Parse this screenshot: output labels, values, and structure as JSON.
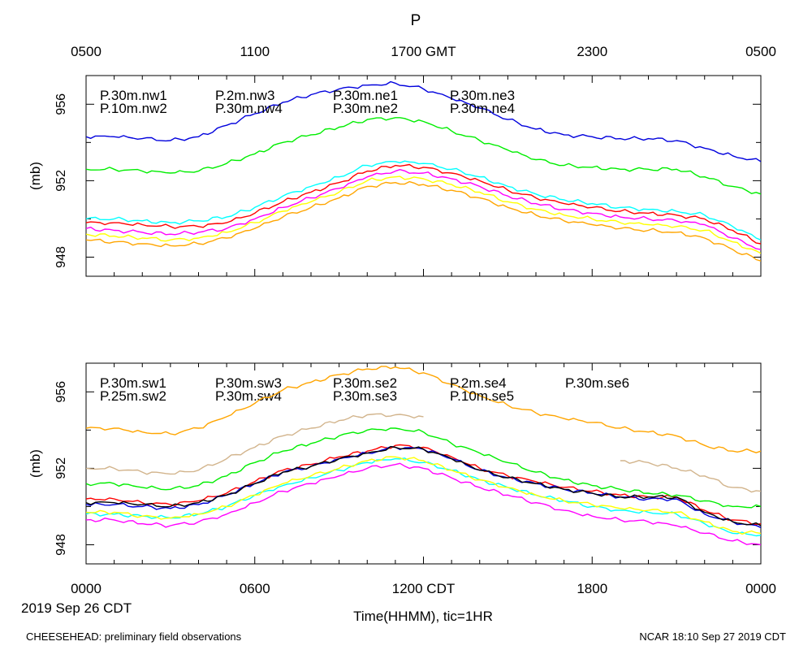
{
  "chart_data": {
    "type": "line",
    "title": "P",
    "ylabel": "(mb)",
    "ylim": [
      947,
      957.5
    ],
    "yticks": [
      "948",
      "952",
      "956"
    ],
    "top_axis": {
      "tick_labels": [
        "0500",
        "1100",
        "1700 GMT",
        "2300",
        "0500"
      ]
    },
    "bottom_axis": {
      "tick_labels": [
        "0000",
        "0600",
        "1200 CDT",
        "1800",
        "0000"
      ]
    },
    "xlabel": "Time(HHMM), tic=1HR",
    "date_label": "2019 Sep 26 CDT",
    "footer_left": "CHEESEHEAD: preliminary field observations",
    "footer_right": "NCAR 18:10 Sep 27 2019 CDT",
    "x_hours": [
      0,
      1,
      2,
      3,
      4,
      5,
      6,
      7,
      8,
      9,
      10,
      11,
      12,
      13,
      14,
      15,
      16,
      17,
      18,
      19,
      20,
      21,
      22,
      23,
      24
    ],
    "panels": [
      {
        "series": [
          {
            "name": "P.30m.nw1",
            "color": "#ff0000",
            "values": [
              949.8,
              949.8,
              949.7,
              949.6,
              949.6,
              949.8,
              950.3,
              950.9,
              951.4,
              951.9,
              952.5,
              952.8,
              952.7,
              952.4,
              952.0,
              951.5,
              951.1,
              950.8,
              950.6,
              950.4,
              950.3,
              950.2,
              950.0,
              949.4,
              948.7
            ]
          },
          {
            "name": "P.10m.nw2",
            "color": "#00ee00",
            "values": [
              952.6,
              952.6,
              952.5,
              952.4,
              952.5,
              952.9,
              953.4,
              954.0,
              954.4,
              954.8,
              955.2,
              955.3,
              955.1,
              954.6,
              954.1,
              953.6,
              953.1,
              952.8,
              952.7,
              952.6,
              952.6,
              952.6,
              952.2,
              951.7,
              951.3
            ]
          },
          {
            "name": "P.2m.nw3",
            "color": "#0000dd",
            "values": [
              954.3,
              954.3,
              954.2,
              954.1,
              954.3,
              954.9,
              955.5,
              956.1,
              956.5,
              956.8,
              957.0,
              957.1,
              956.8,
              956.3,
              955.8,
              955.2,
              954.7,
              954.4,
              954.3,
              954.2,
              954.2,
              954.1,
              953.7,
              953.3,
              953.0
            ]
          },
          {
            "name": "P.30m.nw4",
            "color": "#00ffff",
            "values": [
              950.0,
              950.0,
              949.9,
              949.8,
              949.9,
              950.1,
              950.6,
              951.2,
              951.7,
              952.2,
              952.8,
              953.0,
              952.9,
              952.6,
              952.2,
              951.7,
              951.3,
              951.0,
              950.8,
              950.6,
              950.5,
              950.4,
              950.2,
              949.6,
              948.9
            ]
          },
          {
            "name": "P.30m.ne1",
            "color": "#ff00ff",
            "values": [
              949.5,
              949.4,
              949.3,
              949.2,
              949.3,
              949.5,
              950.0,
              950.6,
              951.1,
              951.6,
              952.2,
              952.5,
              952.4,
              952.1,
              951.7,
              951.2,
              950.8,
              950.5,
              950.3,
              950.1,
              950.0,
              949.9,
              949.7,
              949.0,
              948.4
            ]
          },
          {
            "name": "P.30m.ne2",
            "color": "#ffff00",
            "values": [
              949.2,
              949.1,
              949.0,
              948.9,
              949.0,
              949.3,
              949.8,
              950.4,
              950.9,
              951.4,
              952.0,
              952.2,
              952.1,
              951.8,
              951.4,
              950.9,
              950.5,
              950.2,
              950.0,
              949.8,
              949.7,
              949.6,
              949.4,
              948.8,
              948.2
            ]
          },
          {
            "name": "P.30m.ne3",
            "color": "#ffa500",
            "values": [
              948.9,
              948.8,
              948.7,
              948.6,
              948.7,
              949.0,
              949.5,
              950.1,
              950.6,
              951.1,
              951.7,
              951.9,
              951.8,
              951.5,
              951.1,
              950.6,
              950.2,
              949.9,
              949.7,
              949.5,
              949.4,
              949.3,
              949.0,
              948.4,
              947.8
            ]
          },
          {
            "name": "P.30m.ne4",
            "color": "#d2b48c",
            "values": []
          }
        ]
      },
      {
        "series": [
          {
            "name": "P.30m.sw1",
            "color": "#ff0000",
            "values": [
              950.4,
              950.4,
              950.2,
              950.1,
              950.3,
              950.7,
              951.3,
              951.9,
              952.2,
              952.6,
              952.9,
              953.2,
              953.1,
              952.6,
              952.0,
              951.6,
              951.3,
              951.0,
              950.8,
              950.6,
              950.5,
              950.5,
              949.8,
              949.3,
              949.1
            ]
          },
          {
            "name": "P.25m.sw2",
            "color": "#00ee00",
            "values": [
              951.2,
              951.2,
              951.0,
              950.9,
              951.1,
              951.6,
              952.3,
              952.9,
              953.3,
              953.7,
              954.0,
              954.1,
              953.9,
              953.3,
              952.8,
              952.3,
              951.8,
              951.4,
              951.1,
              950.9,
              950.7,
              950.6,
              950.3,
              950.0,
              950.0
            ]
          },
          {
            "name": "P.30m.sw3",
            "color": "#0000dd",
            "values": [
              950.1,
              950.1,
              950.0,
              949.9,
              950.1,
              950.6,
              951.2,
              951.8,
              952.1,
              952.5,
              952.8,
              953.1,
              953.0,
              952.5,
              951.9,
              951.5,
              951.2,
              950.9,
              950.7,
              950.5,
              950.4,
              950.4,
              949.6,
              949.2,
              948.9
            ]
          },
          {
            "name": "P.30m.sw4",
            "color": "#00ffff",
            "values": [
              949.6,
              949.6,
              949.5,
              949.4,
              949.6,
              950.0,
              950.6,
              951.1,
              951.5,
              951.9,
              952.3,
              952.5,
              952.3,
              951.9,
              951.4,
              951.0,
              950.6,
              950.3,
              950.0,
              949.8,
              949.7,
              949.6,
              949.1,
              948.6,
              948.5
            ]
          },
          {
            "name": "P.30m.se2",
            "color": "#ff00ff",
            "values": [
              949.3,
              949.3,
              949.1,
              949.0,
              949.2,
              949.6,
              950.2,
              950.8,
              951.2,
              951.6,
              952.0,
              952.2,
              952.0,
              951.5,
              951.0,
              950.6,
              950.2,
              949.8,
              949.5,
              949.3,
              949.2,
              949.0,
              948.6,
              948.2,
              948.0
            ]
          },
          {
            "name": "P.30m.se3",
            "color": "#ffff00",
            "values": [
              949.7,
              949.7,
              949.5,
              949.4,
              949.6,
              950.0,
              950.6,
              951.2,
              951.6,
              952.0,
              952.4,
              952.6,
              952.4,
              951.9,
              951.4,
              951.0,
              950.6,
              950.3,
              950.1,
              949.9,
              949.8,
              949.7,
              949.2,
              948.7,
              948.6
            ]
          },
          {
            "name": "P.2m.se4",
            "color": "#ffa500",
            "values": [
              954.1,
              954.1,
              953.9,
              953.8,
              954.1,
              954.7,
              955.4,
              956.1,
              956.5,
              956.9,
              957.2,
              957.3,
              957.0,
              956.4,
              955.8,
              955.3,
              954.9,
              954.6,
              954.4,
              954.1,
              953.9,
              953.7,
              953.2,
              952.9,
              952.9
            ]
          },
          {
            "name": "P.10m.se5",
            "color": "#d2b48c",
            "values": [
              952.0,
              952.0,
              951.8,
              951.7,
              951.9,
              952.5,
              953.1,
              953.7,
              954.1,
              954.5,
              954.8,
              954.8,
              954.7,
              null,
              null,
              null,
              null,
              null,
              null,
              952.4,
              952.3,
              952.0,
              951.6,
              951.0,
              950.8
            ]
          },
          {
            "name": "P.30m.se6",
            "color": "#000000",
            "values": [
              950.2,
              950.2,
              950.1,
              950.0,
              950.2,
              950.6,
              951.2,
              951.8,
              952.1,
              952.5,
              952.8,
              953.1,
              953.0,
              952.5,
              951.9,
              951.5,
              951.2,
              950.9,
              950.7,
              950.5,
              950.5,
              950.5,
              949.7,
              949.2,
              949.0
            ]
          }
        ]
      }
    ]
  }
}
